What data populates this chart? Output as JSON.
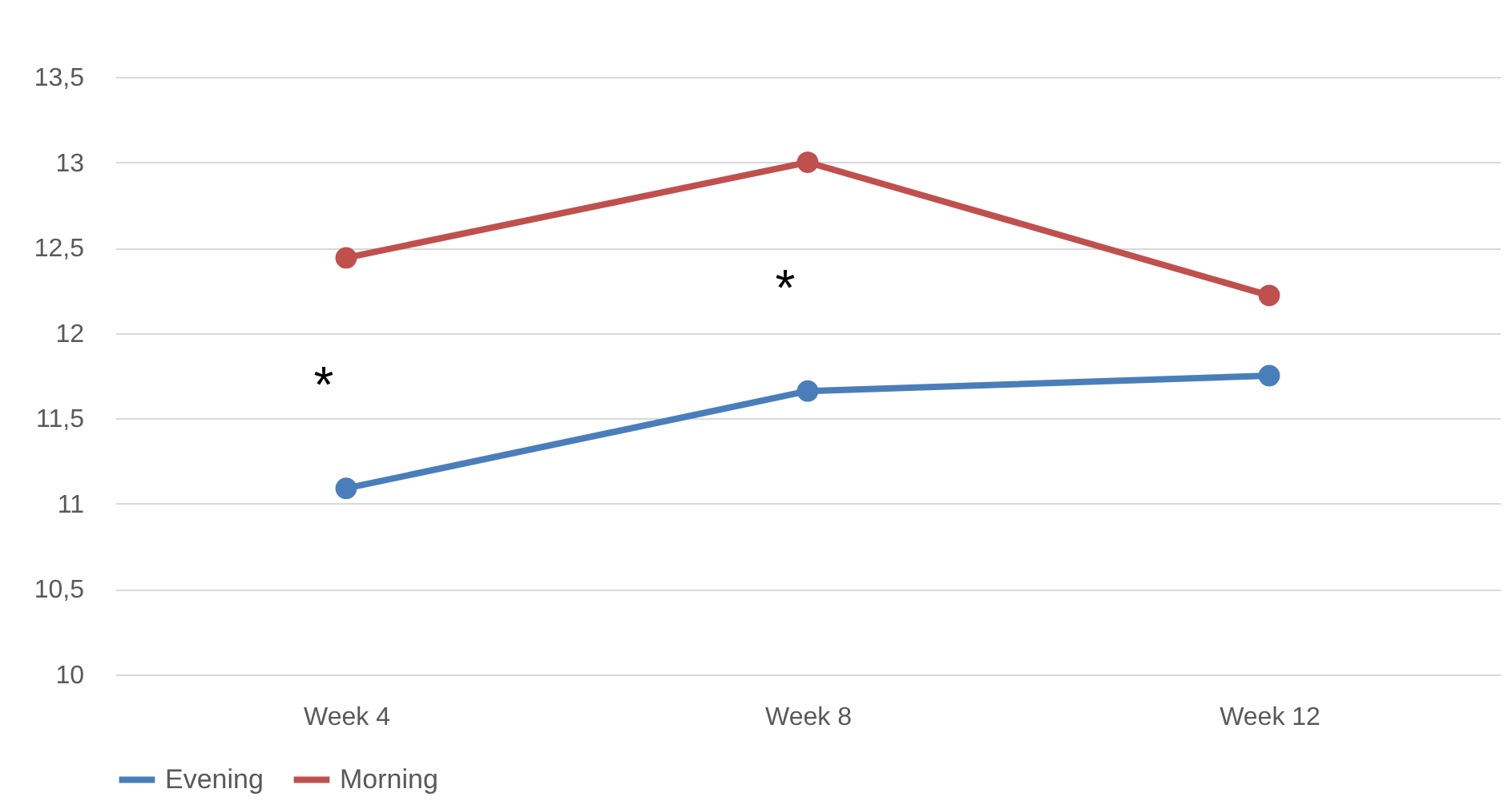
{
  "chart_data": {
    "type": "line",
    "categories": [
      "Week 4",
      "Week 8",
      "Week 12"
    ],
    "series": [
      {
        "name": "Evening",
        "color": "#4a7ebb",
        "values": [
          11.09,
          11.66,
          11.75
        ]
      },
      {
        "name": "Morning",
        "color": "#c0504d",
        "values": [
          12.44,
          13.0,
          12.22
        ]
      }
    ],
    "ylim": [
      10,
      13.5
    ],
    "yticks": [
      10,
      {
        "value": 10.5,
        "label": "10,5"
      },
      11,
      {
        "value": 11.5,
        "label": "11,5"
      },
      12,
      {
        "value": 12.5,
        "label": "12,5"
      },
      13,
      {
        "value": 13.5,
        "label": "13,5"
      }
    ],
    "annotations": [
      "*",
      "*"
    ],
    "grid": "y",
    "legend": "bottom",
    "marker": "circle",
    "line_style": "solid"
  }
}
